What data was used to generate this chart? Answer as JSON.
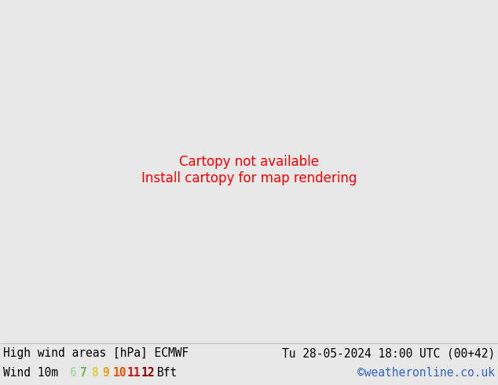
{
  "title_left": "High wind areas [hPa] ECMWF",
  "title_right": "Tu 28-05-2024 18:00 UTC (00+42)",
  "subtitle_left": "Wind 10m",
  "legend_numbers": [
    "6",
    "7",
    "8",
    "9",
    "10",
    "11",
    "12"
  ],
  "legend_colors": [
    "#aaddaa",
    "#66bb44",
    "#ddcc44",
    "#ee9922",
    "#ee5500",
    "#cc1111",
    "#880000"
  ],
  "legend_suffix": "Bft",
  "credit": "©weatheronline.co.uk",
  "title_font_size": 10.5,
  "credit_color": "#3366cc",
  "bottom_bar_bg": "#e8e8e8",
  "map_extent": [
    -25,
    45,
    30,
    75
  ],
  "land_color": "#c8dba0",
  "sea_color": "#ddeeff",
  "map_bg": "#f0f5f0"
}
